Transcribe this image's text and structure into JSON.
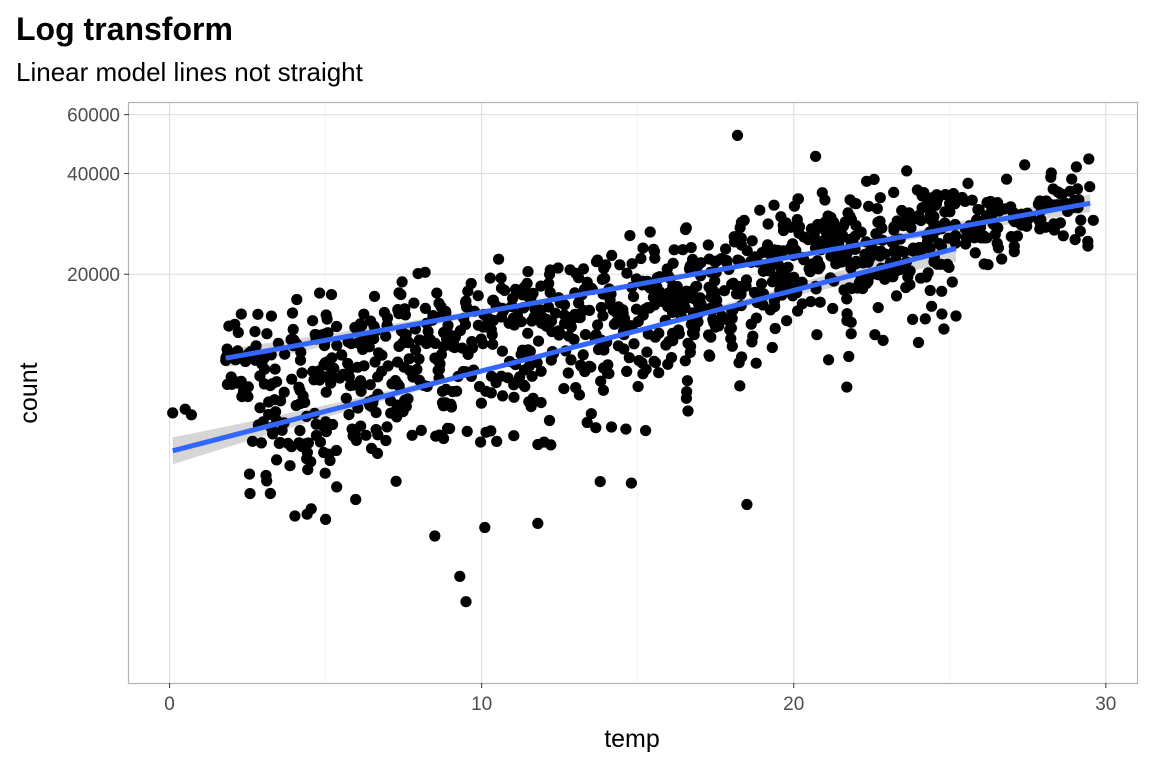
{
  "chart_data": {
    "type": "scatter",
    "title": "Log transform",
    "subtitle": "Linear model lines not straight",
    "xlabel": "temp",
    "ylabel": "count",
    "xlim": [
      -1.3,
      31.0
    ],
    "ylim": [
      1200,
      65000
    ],
    "yscale": "log",
    "x_ticks": [
      0,
      10,
      20,
      30
    ],
    "y_ticks": [
      20000,
      40000,
      60000
    ],
    "grid": true,
    "colors": {
      "points": "#000000",
      "fit_line": "#3366ff",
      "ribbon": "#999999",
      "grid": "#dedede",
      "panel_border": "#b3b3b3"
    },
    "clusters": [
      {
        "n": 520,
        "x_range": [
          1.8,
          29.6
        ],
        "line": {
          "a": 10470,
          "b": 0.0385,
          "x_range": [
            1.8,
            29.5
          ]
        },
        "spread": 0.15,
        "line_width": 5
      },
      {
        "n": 600,
        "x_range": [
          2.5,
          25.2
        ],
        "line": {
          "a": 5900,
          "b": 0.0555,
          "x_range": [
            0.1,
            25.2
          ]
        },
        "spread": 0.27,
        "line_width": 5
      }
    ],
    "points": [
      {
        "x": 18.2,
        "y": 52000
      },
      {
        "x": 20.7,
        "y": 45000
      },
      {
        "x": 29.6,
        "y": 29000
      },
      {
        "x": 22.0,
        "y": 32500
      },
      {
        "x": 9.3,
        "y": 2500
      },
      {
        "x": 9.5,
        "y": 2100
      },
      {
        "x": 0.1,
        "y": 7700
      },
      {
        "x": 0.5,
        "y": 7900
      },
      {
        "x": 0.7,
        "y": 7600
      },
      {
        "x": 18.5,
        "y": 4100
      },
      {
        "x": 14.8,
        "y": 4750
      },
      {
        "x": 13.8,
        "y": 4800
      },
      {
        "x": 11.8,
        "y": 3600
      },
      {
        "x": 8.5,
        "y": 3300
      },
      {
        "x": 10.1,
        "y": 3500
      },
      {
        "x": 5.0,
        "y": 3700
      },
      {
        "x": 25.2,
        "y": 15000
      },
      {
        "x": 26.4,
        "y": 28200
      },
      {
        "x": 27.5,
        "y": 29200
      },
      {
        "x": 21.7,
        "y": 9200
      },
      {
        "x": 24.0,
        "y": 12500
      },
      {
        "x": 2.3,
        "y": 15200
      },
      {
        "x": 1.9,
        "y": 14000
      }
    ]
  }
}
